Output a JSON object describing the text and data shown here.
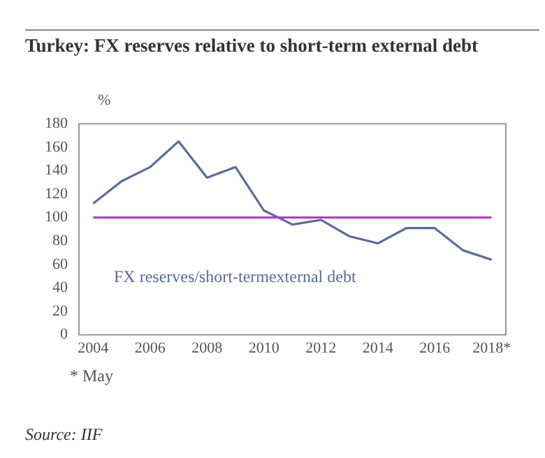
{
  "chart_data": {
    "type": "line",
    "title": "Turkey: FX reserves relative to short-term external debt",
    "ylabel": "%",
    "categories": [
      "2004",
      null,
      "2006",
      null,
      "2008",
      null,
      "2010",
      null,
      "2012",
      null,
      "2014",
      null,
      "2016",
      null,
      "2018*"
    ],
    "series": [
      {
        "name": "FX reserves/short-termexternal debt",
        "color": "#5b6b9e",
        "values": [
          112,
          131,
          143,
          165,
          134,
          143,
          106,
          94,
          98,
          84,
          78,
          91,
          91,
          72,
          64
        ]
      }
    ],
    "ylim": [
      0,
      180
    ],
    "yticks": [
      0,
      20,
      40,
      60,
      80,
      100,
      120,
      140,
      160,
      180
    ],
    "grid": false,
    "legend": false,
    "marker": "none",
    "line_style": "solid",
    "ref_lines": [
      {
        "axis": "y",
        "value": 100,
        "color": "#b23bb8"
      }
    ],
    "annotations": [
      "* May",
      "Source: IIF"
    ]
  }
}
